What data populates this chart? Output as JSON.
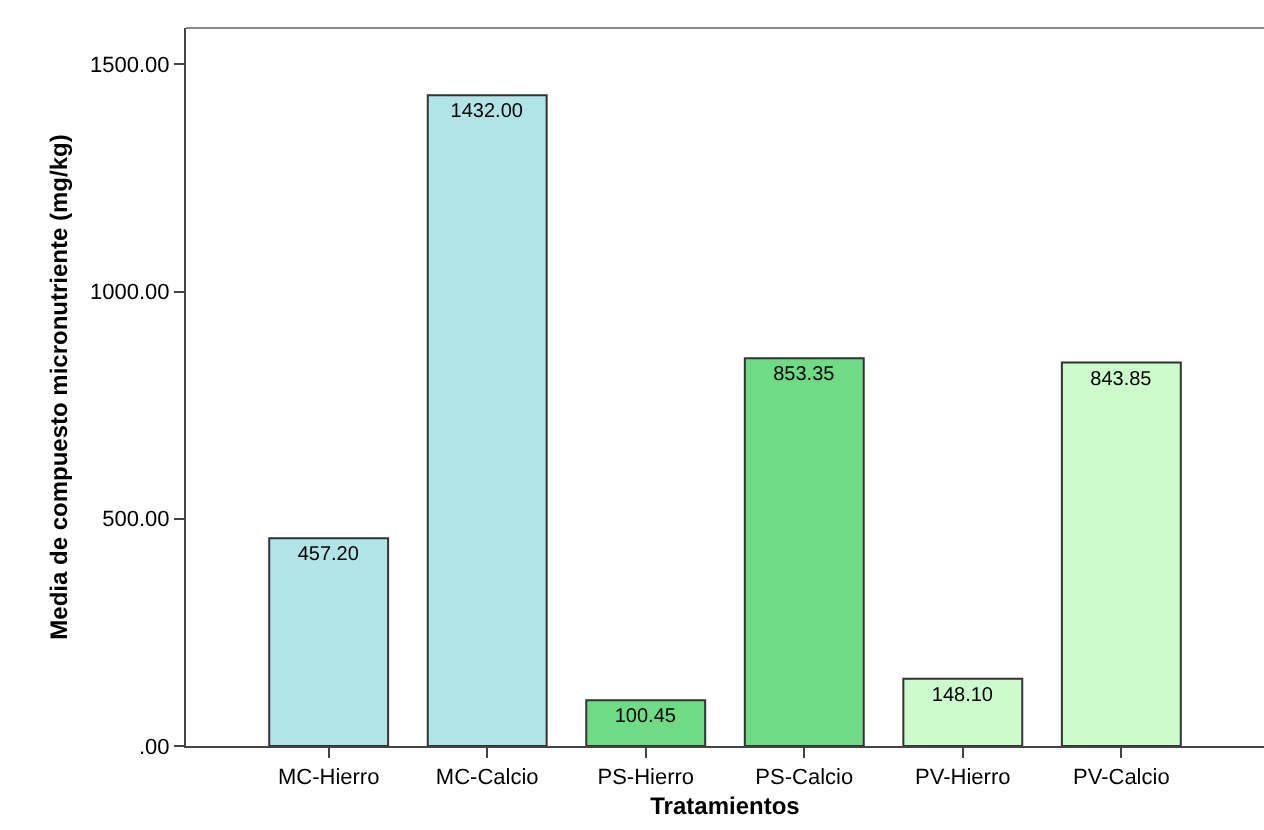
{
  "chart_data": {
    "type": "bar",
    "xlabel": "Tratamientos",
    "ylabel": "Media de compuesto micronutriente (mg/kg)",
    "categories": [
      "MC-Hierro",
      "MC-Calcio",
      "PS-Hierro",
      "PS-Calcio",
      "PV-Hierro",
      "PV-Calcio"
    ],
    "values": [
      457.2,
      1432.0,
      100.45,
      853.35,
      148.1,
      843.85
    ],
    "value_labels": [
      "457.20",
      "1432.00",
      "100.45",
      "853.35",
      "148.10",
      "843.85"
    ],
    "colors": [
      "#b0e4e6",
      "#b0e4e6",
      "#6fdc85",
      "#6fdc85",
      "#ccfccc",
      "#ccfccc"
    ],
    "ylim": [
      0,
      1580
    ],
    "yticks": [
      {
        "value": 0,
        "label": ".00"
      },
      {
        "value": 500,
        "label": "500.00"
      },
      {
        "value": 1000,
        "label": "1000.00"
      },
      {
        "value": 1500,
        "label": "1500.00"
      }
    ],
    "grid": false
  }
}
